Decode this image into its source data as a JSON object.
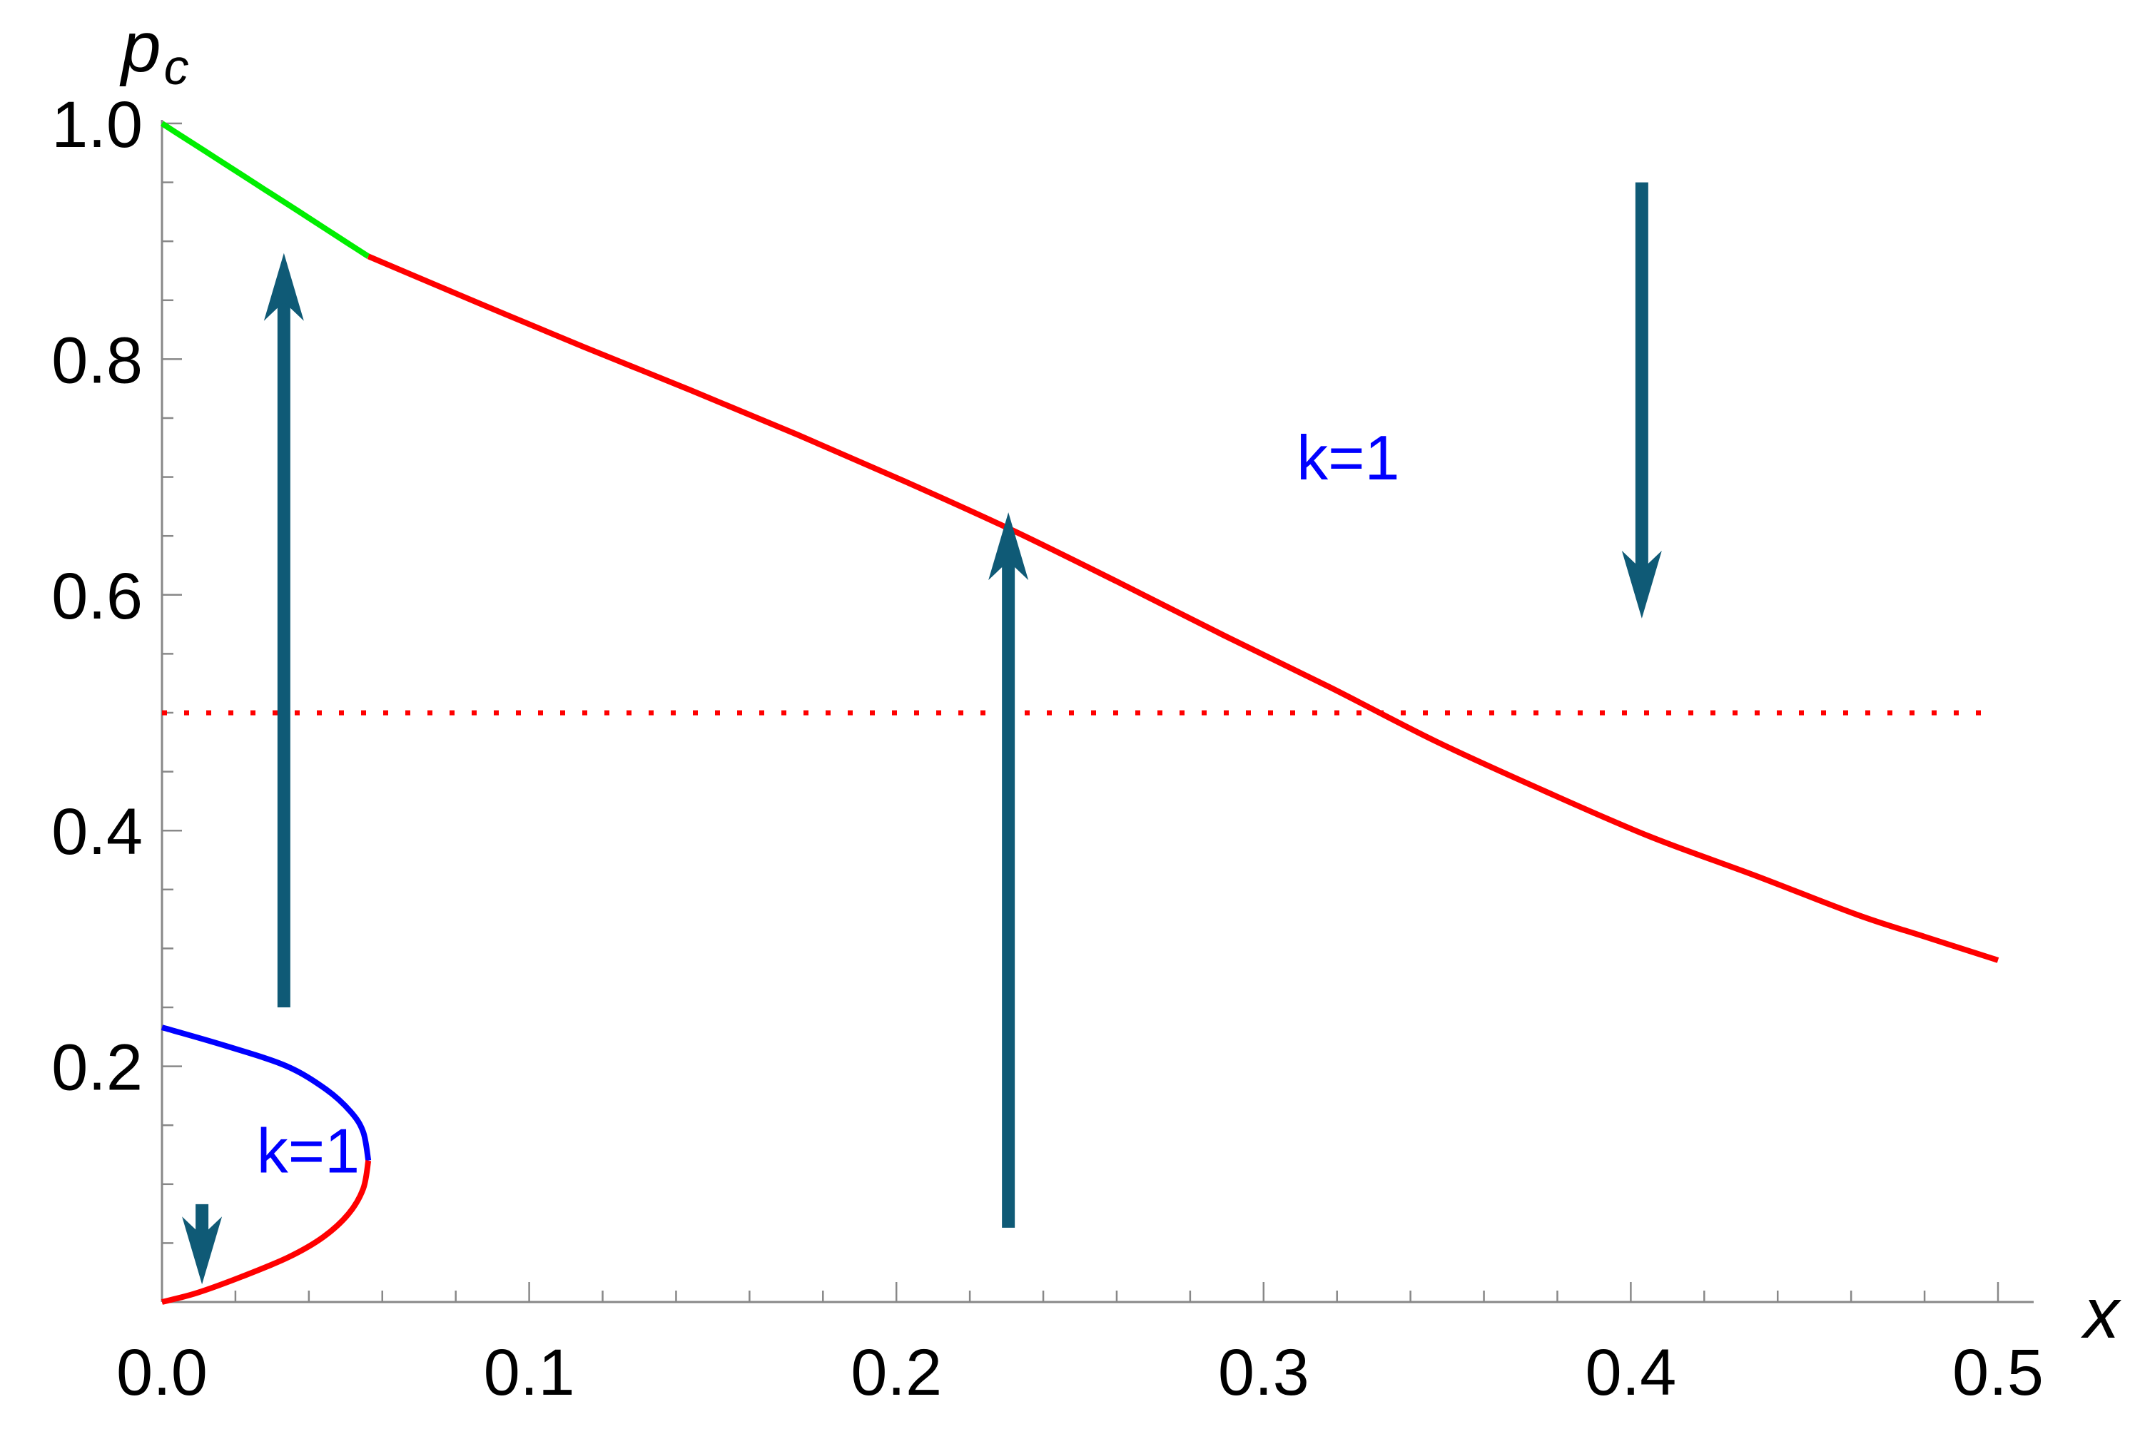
{
  "chart_data": {
    "type": "line",
    "title": "",
    "xlabel": "x",
    "ylabel": {
      "base": "p",
      "subscript": "c"
    },
    "xlim": [
      0,
      0.5
    ],
    "ylim": [
      0,
      1.0
    ],
    "x_ticks": [
      "0.0",
      "0.1",
      "0.2",
      "0.3",
      "0.4",
      "0.5"
    ],
    "y_ticks": [
      "0.2",
      "0.4",
      "0.6",
      "0.8",
      "1.0"
    ],
    "y_tick_values": [
      0.2,
      0.4,
      0.6,
      0.8,
      1.0
    ],
    "x_tick_values": [
      0.0,
      0.1,
      0.2,
      0.3,
      0.4,
      0.5
    ],
    "grid": false,
    "series": [
      {
        "color": "#00ee00",
        "style": "solid",
        "points": [
          [
            0.0,
            1.0
          ],
          [
            0.0056,
            0.9887
          ],
          [
            0.0113,
            0.9774
          ],
          [
            0.0169,
            0.9661
          ],
          [
            0.0225,
            0.9549
          ],
          [
            0.0281,
            0.9436
          ],
          [
            0.0338,
            0.9323
          ],
          [
            0.0394,
            0.921
          ],
          [
            0.045,
            0.9097
          ],
          [
            0.0506,
            0.8984
          ],
          [
            0.0562,
            0.8872
          ]
        ]
      },
      {
        "color": "#ff0000",
        "style": "solid",
        "points": [
          [
            0.0562,
            0.8872
          ],
          [
            0.0856,
            0.8484
          ],
          [
            0.115,
            0.8102
          ],
          [
            0.144,
            0.7736
          ],
          [
            0.173,
            0.736
          ],
          [
            0.202,
            0.6967
          ],
          [
            0.231,
            0.6557
          ],
          [
            0.26,
            0.6114
          ],
          [
            0.289,
            0.5659
          ],
          [
            0.318,
            0.5217
          ],
          [
            0.347,
            0.4756
          ],
          [
            0.376,
            0.4343
          ],
          [
            0.405,
            0.3952
          ],
          [
            0.434,
            0.3617
          ],
          [
            0.462,
            0.3282
          ],
          [
            0.48,
            0.31
          ],
          [
            0.5,
            0.29
          ]
        ]
      },
      {
        "color": "#0000ff",
        "style": "solid",
        "points": [
          [
            0.0,
            0.233
          ],
          [
            0.0173,
            0.2174
          ],
          [
            0.0338,
            0.2003
          ],
          [
            0.0446,
            0.1806
          ],
          [
            0.0514,
            0.1614
          ],
          [
            0.0548,
            0.1443
          ],
          [
            0.0562,
            0.12
          ]
        ]
      },
      {
        "color": "#ff0000",
        "style": "solid",
        "points": [
          [
            0.0562,
            0.12
          ],
          [
            0.0548,
            0.0961
          ],
          [
            0.0508,
            0.0748
          ],
          [
            0.0439,
            0.0551
          ],
          [
            0.0345,
            0.0381
          ],
          [
            0.0218,
            0.0216
          ],
          [
            0.0094,
            0.0076
          ],
          [
            0.0,
            0.0
          ]
        ]
      },
      {
        "color": "#ff0000",
        "style": "dotted",
        "points": [
          [
            0.0,
            0.4999
          ],
          [
            0.5,
            0.4999
          ]
        ]
      }
    ],
    "arrows": [
      {
        "x": 0.0332,
        "from": 0.25,
        "to": 0.89,
        "direction": "up"
      },
      {
        "x": 0.2305,
        "from": 0.063,
        "to": 0.67,
        "direction": "up"
      },
      {
        "x": 0.403,
        "from": 0.95,
        "to": 0.58,
        "direction": "down"
      },
      {
        "x": 0.0109,
        "from": 0.083,
        "to": 0.015,
        "direction": "down"
      }
    ],
    "annotations": [
      {
        "text": "k=1",
        "x": 0.309,
        "y": 0.698,
        "color": "#0000ff"
      },
      {
        "text": "k=1",
        "x": 0.0258,
        "y": 0.11,
        "color": "#0000ff"
      }
    ],
    "arrow_color": "#0f5a76",
    "axis_color": "#888888"
  }
}
